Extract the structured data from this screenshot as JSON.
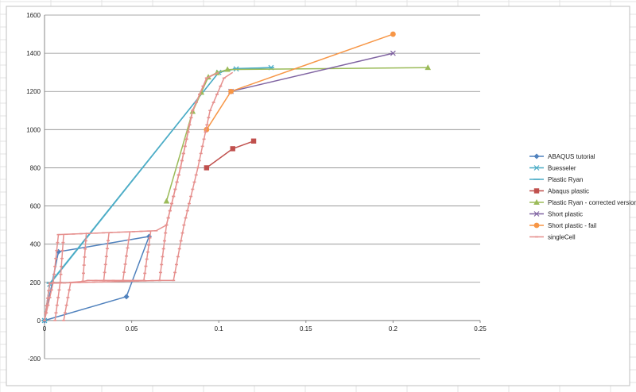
{
  "chart_data": {
    "type": "scatter",
    "title": "",
    "xlabel": "",
    "ylabel": "",
    "xlim": [
      0,
      0.25
    ],
    "ylim": [
      -200,
      1600
    ],
    "x_ticks": [
      "0",
      "0.05",
      "0.1",
      "0.15",
      "0.2",
      "0.25"
    ],
    "y_ticks": [
      "-200",
      "0",
      "200",
      "400",
      "600",
      "800",
      "1000",
      "1200",
      "1400",
      "1600"
    ],
    "grid": "horizontal",
    "legend_position": "right",
    "series": [
      {
        "name": "ABAQUS tutorial",
        "color": "#4F81BD",
        "marker": "diamond",
        "points": [
          [
            0,
            0
          ],
          [
            0.008,
            360
          ],
          [
            0.06,
            440
          ],
          [
            0.047,
            125
          ],
          [
            0,
            0
          ]
        ]
      },
      {
        "name": "Buesseler",
        "color": "#4BACC6",
        "marker": "x",
        "points": [
          [
            0,
            0
          ],
          [
            0.003,
            190
          ],
          [
            0.1,
            1300
          ],
          [
            0.11,
            1318
          ],
          [
            0.13,
            1325
          ]
        ]
      },
      {
        "name": "Plastic Ryan",
        "color": "#4BACC6",
        "marker": "dash",
        "points": [
          [
            0,
            0
          ],
          [
            0.003,
            195
          ],
          [
            0.1,
            1300
          ],
          [
            0.11,
            1320
          ],
          [
            0.13,
            1325
          ]
        ]
      },
      {
        "name": "Abaqus plastic",
        "color": "#C0504D",
        "marker": "square",
        "points": [
          [
            0.093,
            800
          ],
          [
            0.108,
            900
          ],
          [
            0.12,
            940
          ]
        ]
      },
      {
        "name": "Plastic Ryan - corrected version",
        "color": "#9BBB59",
        "marker": "triangle",
        "points": [
          [
            0.07,
            625
          ],
          [
            0.085,
            1095
          ],
          [
            0.09,
            1195
          ],
          [
            0.094,
            1275
          ],
          [
            0.099,
            1298
          ],
          [
            0.105,
            1315
          ],
          [
            0.22,
            1325
          ]
        ]
      },
      {
        "name": "Short plastic",
        "color": "#8064A2",
        "marker": "x",
        "points": [
          [
            0.107,
            1200
          ],
          [
            0.2,
            1400
          ]
        ]
      },
      {
        "name": "Short plastic - fail",
        "color": "#F79646",
        "marker": "circle",
        "points": [
          [
            0.093,
            1000
          ],
          [
            0.107,
            1200
          ],
          [
            0.2,
            1500
          ]
        ]
      },
      {
        "name": "singleCell",
        "color": "#E6908E",
        "marker": "tick",
        "segments": [
          [
            [
              0,
              0
            ],
            [
              0.003,
              195
            ],
            [
              0.066,
              210
            ],
            [
              0.07,
              500
            ],
            [
              0.078,
              800
            ],
            [
              0.085,
              1100
            ],
            [
              0.093,
              1270
            ],
            [
              0.1,
              1300
            ]
          ],
          [
            [
              0,
              0
            ],
            [
              0.005,
              200
            ],
            [
              0.008,
              450
            ],
            [
              0.064,
              470
            ],
            [
              0.07,
              500
            ],
            [
              0.078,
              800
            ],
            [
              0.085,
              1100
            ],
            [
              0.093,
              1270
            ],
            [
              0.1,
              1300
            ]
          ],
          [
            [
              0.006,
              0
            ],
            [
              0.009,
              200
            ],
            [
              0.011,
              450
            ]
          ],
          [
            [
              0.011,
              0
            ],
            [
              0.015,
              200
            ],
            [
              0.022,
              205
            ],
            [
              0.024,
              460
            ]
          ],
          [
            [
              0.022,
              205
            ],
            [
              0.025,
              210
            ],
            [
              0.034,
              210
            ],
            [
              0.037,
              460
            ]
          ],
          [
            [
              0.034,
              210
            ],
            [
              0.045,
              210
            ],
            [
              0.049,
              465
            ]
          ],
          [
            [
              0.045,
              210
            ],
            [
              0.057,
              210
            ],
            [
              0.061,
              470
            ]
          ],
          [
            [
              0.066,
              210
            ],
            [
              0.074,
              210
            ],
            [
              0.08,
              500
            ],
            [
              0.088,
              800
            ],
            [
              0.095,
              1100
            ],
            [
              0.103,
              1270
            ],
            [
              0.108,
              1300
            ]
          ]
        ]
      }
    ]
  }
}
